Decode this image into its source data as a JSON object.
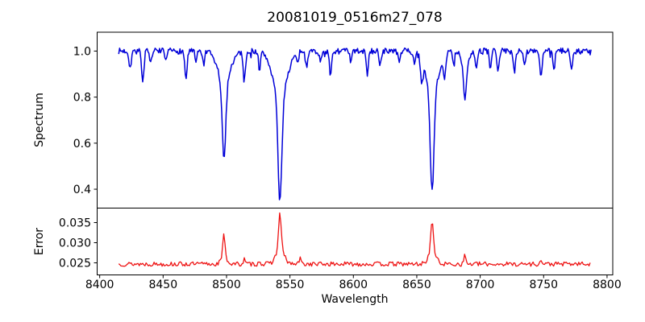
{
  "title": "20081019_0516m27_078",
  "xlabel": "Wavelength",
  "background": "#ffffff",
  "axis_color": "#000000",
  "chart_data": [
    {
      "type": "line",
      "panel": "spectrum",
      "ylabel": "Spectrum",
      "color": "#0000d8",
      "line_width": 1.5,
      "xlim": [
        8398,
        8804.5
      ],
      "ylim": [
        0.318,
        1.082
      ],
      "xticks": [
        8400,
        8450,
        8500,
        8550,
        8600,
        8650,
        8700,
        8750,
        8800
      ],
      "xtick_labels": [
        "8400",
        "8450",
        "8500",
        "8550",
        "8600",
        "8650",
        "8700",
        "8750",
        "8800"
      ],
      "show_xtick_labels": false,
      "yticks": [
        0.4,
        0.6,
        0.8,
        1.0
      ],
      "ytick_labels": [
        "0.4",
        "0.6",
        "0.8",
        "1.0"
      ],
      "x_range": [
        8415,
        8787.5
      ],
      "sample_step": 0.7,
      "continuum": 1.0,
      "noise_amplitude": 0.013,
      "noise_seed": 7,
      "grid": false,
      "legend": null,
      "absorption_lines": [
        {
          "wavelength": 8424.0,
          "depth": 0.07,
          "core_sigma": 0.9,
          "wing_sigma": 0,
          "wing_frac": 0
        },
        {
          "wavelength": 8434.0,
          "depth": 0.13,
          "core_sigma": 0.9,
          "wing_sigma": 0,
          "wing_frac": 0
        },
        {
          "wavelength": 8440.0,
          "depth": 0.06,
          "core_sigma": 0.8,
          "wing_sigma": 0,
          "wing_frac": 0
        },
        {
          "wavelength": 8452.0,
          "depth": 0.05,
          "core_sigma": 0.8,
          "wing_sigma": 0,
          "wing_frac": 0
        },
        {
          "wavelength": 8468.0,
          "depth": 0.12,
          "core_sigma": 0.9,
          "wing_sigma": 0,
          "wing_frac": 0
        },
        {
          "wavelength": 8476.0,
          "depth": 0.05,
          "core_sigma": 0.8,
          "wing_sigma": 0,
          "wing_frac": 0
        },
        {
          "wavelength": 8482.0,
          "depth": 0.06,
          "core_sigma": 0.8,
          "wing_sigma": 0,
          "wing_frac": 0
        },
        {
          "wavelength": 8498.0,
          "depth": 0.47,
          "core_sigma": 1.4,
          "wing_sigma": 5.0,
          "wing_frac": 0.28
        },
        {
          "wavelength": 8514.0,
          "depth": 0.13,
          "core_sigma": 0.9,
          "wing_sigma": 0,
          "wing_frac": 0
        },
        {
          "wavelength": 8526.0,
          "depth": 0.08,
          "core_sigma": 0.8,
          "wing_sigma": 0,
          "wing_frac": 0
        },
        {
          "wavelength": 8542.1,
          "depth": 0.655,
          "core_sigma": 1.5,
          "wing_sigma": 5.5,
          "wing_frac": 0.3
        },
        {
          "wavelength": 8556.0,
          "depth": 0.05,
          "core_sigma": 0.8,
          "wing_sigma": 0,
          "wing_frac": 0
        },
        {
          "wavelength": 8563.0,
          "depth": 0.07,
          "core_sigma": 0.8,
          "wing_sigma": 0,
          "wing_frac": 0
        },
        {
          "wavelength": 8574.0,
          "depth": 0.05,
          "core_sigma": 0.8,
          "wing_sigma": 0,
          "wing_frac": 0
        },
        {
          "wavelength": 8582.0,
          "depth": 0.11,
          "core_sigma": 0.9,
          "wing_sigma": 0,
          "wing_frac": 0
        },
        {
          "wavelength": 8598.0,
          "depth": 0.05,
          "core_sigma": 0.8,
          "wing_sigma": 0,
          "wing_frac": 0
        },
        {
          "wavelength": 8611.0,
          "depth": 0.1,
          "core_sigma": 0.9,
          "wing_sigma": 0,
          "wing_frac": 0
        },
        {
          "wavelength": 8621.0,
          "depth": 0.06,
          "core_sigma": 0.8,
          "wing_sigma": 0,
          "wing_frac": 0
        },
        {
          "wavelength": 8636.0,
          "depth": 0.05,
          "core_sigma": 0.8,
          "wing_sigma": 0,
          "wing_frac": 0
        },
        {
          "wavelength": 8648.0,
          "depth": 0.05,
          "core_sigma": 0.8,
          "wing_sigma": 0,
          "wing_frac": 0
        },
        {
          "wavelength": 8654.0,
          "depth": 0.09,
          "core_sigma": 0.9,
          "wing_sigma": 0,
          "wing_frac": 0
        },
        {
          "wavelength": 8662.1,
          "depth": 0.6,
          "core_sigma": 1.5,
          "wing_sigma": 5.2,
          "wing_frac": 0.28
        },
        {
          "wavelength": 8672.0,
          "depth": 0.09,
          "core_sigma": 0.8,
          "wing_sigma": 0,
          "wing_frac": 0
        },
        {
          "wavelength": 8679.0,
          "depth": 0.06,
          "core_sigma": 0.8,
          "wing_sigma": 0,
          "wing_frac": 0
        },
        {
          "wavelength": 8688.0,
          "depth": 0.2,
          "core_sigma": 1.2,
          "wing_sigma": 3.0,
          "wing_frac": 0.25
        },
        {
          "wavelength": 8697.0,
          "depth": 0.07,
          "core_sigma": 0.8,
          "wing_sigma": 0,
          "wing_frac": 0
        },
        {
          "wavelength": 8708.0,
          "depth": 0.08,
          "core_sigma": 0.8,
          "wing_sigma": 0,
          "wing_frac": 0
        },
        {
          "wavelength": 8714.0,
          "depth": 0.09,
          "core_sigma": 0.8,
          "wing_sigma": 0,
          "wing_frac": 0
        },
        {
          "wavelength": 8727.0,
          "depth": 0.09,
          "core_sigma": 0.8,
          "wing_sigma": 0,
          "wing_frac": 0
        },
        {
          "wavelength": 8735.0,
          "depth": 0.07,
          "core_sigma": 0.8,
          "wing_sigma": 0,
          "wing_frac": 0
        },
        {
          "wavelength": 8748.0,
          "depth": 0.11,
          "core_sigma": 0.9,
          "wing_sigma": 0,
          "wing_frac": 0
        },
        {
          "wavelength": 8758.0,
          "depth": 0.09,
          "core_sigma": 0.8,
          "wing_sigma": 0,
          "wing_frac": 0
        },
        {
          "wavelength": 8772.0,
          "depth": 0.07,
          "core_sigma": 0.8,
          "wing_sigma": 0,
          "wing_frac": 0
        }
      ]
    },
    {
      "type": "line",
      "panel": "error",
      "ylabel": "Error",
      "color": "#ee1212",
      "line_width": 1.3,
      "xlim": [
        8398,
        8804.5
      ],
      "ylim": [
        0.022,
        0.0386
      ],
      "xticks": [
        8400,
        8450,
        8500,
        8550,
        8600,
        8650,
        8700,
        8750,
        8800
      ],
      "xtick_labels": [
        "8400",
        "8450",
        "8500",
        "8550",
        "8600",
        "8650",
        "8700",
        "8750",
        "8800"
      ],
      "show_xtick_labels": true,
      "yticks": [
        0.025,
        0.03,
        0.035
      ],
      "ytick_labels": [
        "0.025",
        "0.030",
        "0.035"
      ],
      "x_range": [
        8415,
        8787.5
      ],
      "sample_step": 0.9,
      "baseline": 0.0247,
      "noise_amplitude": 0.00055,
      "noise_seed": 13,
      "grid": false,
      "legend": null,
      "peaks": [
        {
          "wavelength": 8498.0,
          "amplitude": 0.0072,
          "core_sigma": 0.9,
          "wing_sigma": 2.2,
          "wing_frac": 0.25
        },
        {
          "wavelength": 8514.0,
          "amplitude": 0.0012,
          "core_sigma": 0.7,
          "wing_sigma": 0,
          "wing_frac": 0
        },
        {
          "wavelength": 8526.0,
          "amplitude": 0.001,
          "core_sigma": 0.6,
          "wing_sigma": 0,
          "wing_frac": 0
        },
        {
          "wavelength": 8542.1,
          "amplitude": 0.0126,
          "core_sigma": 1.0,
          "wing_sigma": 3.2,
          "wing_frac": 0.3
        },
        {
          "wavelength": 8558.0,
          "amplitude": 0.0015,
          "core_sigma": 0.7,
          "wing_sigma": 0,
          "wing_frac": 0
        },
        {
          "wavelength": 8662.1,
          "amplitude": 0.0108,
          "core_sigma": 1.0,
          "wing_sigma": 3.0,
          "wing_frac": 0.28
        },
        {
          "wavelength": 8688.0,
          "amplitude": 0.0022,
          "core_sigma": 0.8,
          "wing_sigma": 0,
          "wing_frac": 0
        },
        {
          "wavelength": 8748.0,
          "amplitude": 0.0008,
          "core_sigma": 0.7,
          "wing_sigma": 0,
          "wing_frac": 0
        }
      ]
    }
  ]
}
